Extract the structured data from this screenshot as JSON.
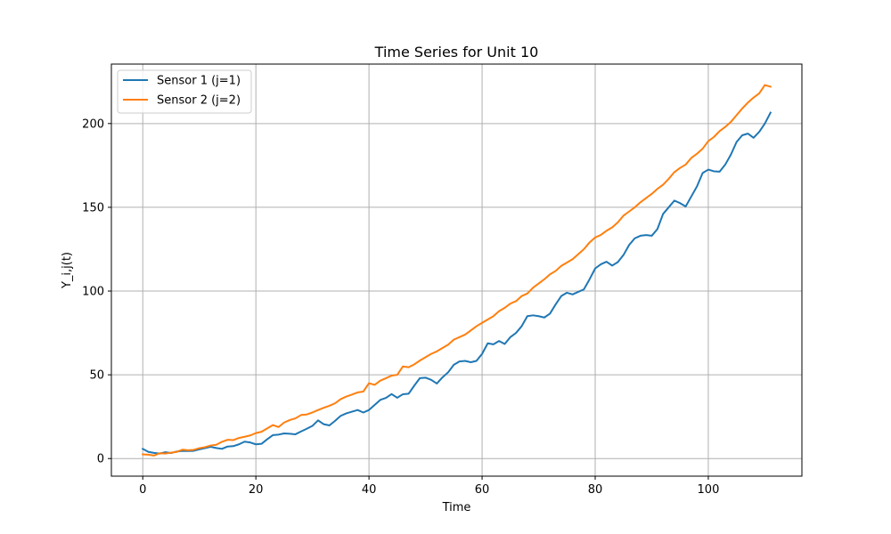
{
  "chart_data": {
    "type": "line",
    "title": "Time Series for Unit 10",
    "xlabel": "Time",
    "ylabel": "Y_i,j(t)",
    "xlim": [
      -5.55,
      116.55
    ],
    "ylim": [
      -10.5,
      235.5
    ],
    "xticks": [
      0,
      20,
      40,
      60,
      80,
      100
    ],
    "yticks": [
      0,
      50,
      100,
      150,
      200
    ],
    "grid": true,
    "legend_position": "upper-left",
    "series": [
      {
        "name": "Sensor 1 (j=1)",
        "color": "#1f77b4",
        "x": [
          0,
          1,
          2,
          3,
          4,
          5,
          6,
          7,
          8,
          9,
          10,
          11,
          12,
          13,
          14,
          15,
          16,
          17,
          18,
          19,
          20,
          21,
          22,
          23,
          24,
          25,
          26,
          27,
          28,
          29,
          30,
          31,
          32,
          33,
          34,
          35,
          36,
          37,
          38,
          39,
          40,
          41,
          42,
          43,
          44,
          45,
          46,
          47,
          48,
          49,
          50,
          51,
          52,
          53,
          54,
          55,
          56,
          57,
          58,
          59,
          60,
          61,
          62,
          63,
          64,
          65,
          66,
          67,
          68,
          69,
          70,
          71,
          72,
          73,
          74,
          75,
          76,
          77,
          78,
          79,
          80,
          81,
          82,
          83,
          84,
          85,
          86,
          87,
          88,
          89,
          90,
          91,
          92,
          93,
          94,
          95,
          96,
          97,
          98,
          99,
          100,
          101,
          102,
          103,
          104,
          105,
          106,
          107,
          108,
          109,
          110,
          111
        ],
        "y": [
          5.8,
          4,
          3.4,
          3,
          3.8,
          3.3,
          4.2,
          4.6,
          4.5,
          4.6,
          5.5,
          6.2,
          7,
          6.3,
          5.8,
          7.2,
          7.4,
          8.5,
          10.1,
          9.6,
          8.5,
          8.8,
          11.5,
          14,
          14.3,
          15,
          14.8,
          14.5,
          16.2,
          17.8,
          19.5,
          22.8,
          20.5,
          19.8,
          22.5,
          25.5,
          27,
          28,
          29,
          27.5,
          29,
          32,
          35,
          36.2,
          38.5,
          36.3,
          38.4,
          38.7,
          43.5,
          48,
          48.3,
          47,
          44.8,
          48.5,
          51.5,
          56,
          58,
          58.3,
          57.5,
          58.3,
          62.5,
          68.8,
          68.2,
          70.2,
          68.4,
          72.5,
          75,
          79,
          85,
          85.5,
          85,
          84.2,
          86.5,
          92,
          97,
          99,
          98,
          99.5,
          101,
          107,
          113.5,
          116,
          117.5,
          115.2,
          117.3,
          121.5,
          127.5,
          131.5,
          133,
          133.4,
          133,
          137,
          146,
          150,
          154,
          152.5,
          150.5,
          156.5,
          162.5,
          170.5,
          172.5,
          171.5,
          171.3,
          175.5,
          181.5,
          189,
          193,
          194,
          191.5,
          195,
          200,
          206.5
        ]
      },
      {
        "name": "Sensor 2 (j=2)",
        "color": "#ff7f0e",
        "x": [
          0,
          1,
          2,
          3,
          4,
          5,
          6,
          7,
          8,
          9,
          10,
          11,
          12,
          13,
          14,
          15,
          16,
          17,
          18,
          19,
          20,
          21,
          22,
          23,
          24,
          25,
          26,
          27,
          28,
          29,
          30,
          31,
          32,
          33,
          34,
          35,
          36,
          37,
          38,
          39,
          40,
          41,
          42,
          43,
          44,
          45,
          46,
          47,
          48,
          49,
          50,
          51,
          52,
          53,
          54,
          55,
          56,
          57,
          58,
          59,
          60,
          61,
          62,
          63,
          64,
          65,
          66,
          67,
          68,
          69,
          70,
          71,
          72,
          73,
          74,
          75,
          76,
          77,
          78,
          79,
          80,
          81,
          82,
          83,
          84,
          85,
          86,
          87,
          88,
          89,
          90,
          91,
          92,
          93,
          94,
          95,
          96,
          97,
          98,
          99,
          100,
          101,
          102,
          103,
          104,
          105,
          106,
          107,
          108,
          109,
          110,
          111
        ],
        "y": [
          2.5,
          2.3,
          1.8,
          3.2,
          3,
          3.5,
          4,
          5.3,
          5,
          5.2,
          6.2,
          6.8,
          7.8,
          8.2,
          10,
          11.2,
          11,
          12.3,
          13,
          13.8,
          15.2,
          16,
          18,
          20,
          18.8,
          21.5,
          23,
          24,
          26,
          26.3,
          27.5,
          29,
          30.3,
          31.5,
          33,
          35.5,
          37,
          38.2,
          39.5,
          40,
          45,
          44,
          46.5,
          48,
          49.5,
          50,
          55,
          54.5,
          56.2,
          58.5,
          60.5,
          62.5,
          64,
          66,
          68,
          71,
          72.5,
          74,
          76.5,
          79,
          81,
          83,
          85,
          88,
          90,
          92.5,
          94,
          97,
          98.5,
          102,
          104.5,
          107,
          110,
          112,
          115,
          117,
          119,
          122,
          125,
          129,
          132,
          133.5,
          136,
          138,
          141,
          145,
          147.5,
          150,
          153,
          155.5,
          158,
          161,
          163.5,
          167,
          171,
          173.5,
          175.5,
          179.5,
          182,
          185,
          189.5,
          192,
          195.5,
          198,
          201,
          205,
          209,
          212.5,
          215.5,
          218,
          223,
          222
        ]
      }
    ]
  }
}
